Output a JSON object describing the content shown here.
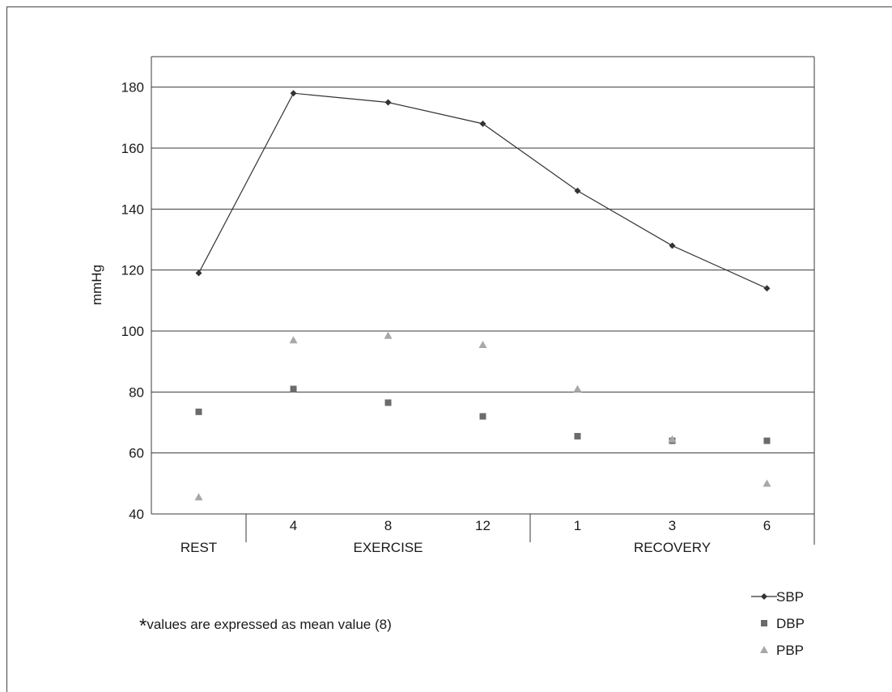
{
  "chart_data": {
    "type": "line",
    "ylabel": "mmHg",
    "ylim": [
      40,
      190
    ],
    "yticks": [
      40,
      60,
      80,
      100,
      120,
      140,
      160,
      180
    ],
    "grid": true,
    "categories": [
      "",
      "4",
      "8",
      "12",
      "1",
      "3",
      "6"
    ],
    "groups": [
      {
        "label": "REST",
        "from": 0,
        "to": 0
      },
      {
        "label": "EXERCISE",
        "from": 1,
        "to": 3
      },
      {
        "label": "RECOVERY",
        "from": 4,
        "to": 6
      }
    ],
    "series": [
      {
        "name": "SBP",
        "marker": "diamond",
        "line": true,
        "color": "#333333",
        "values": [
          119,
          178,
          175,
          168,
          146,
          128,
          114
        ]
      },
      {
        "name": "DBP",
        "marker": "square",
        "line": false,
        "color": "#6b6b6b",
        "values": [
          73.5,
          81,
          76.5,
          72,
          65.5,
          64,
          64
        ]
      },
      {
        "name": "PBP",
        "marker": "triangle",
        "line": false,
        "color": "#a8a8a8",
        "values": [
          45.5,
          97,
          98.5,
          95.5,
          81,
          64.5,
          50
        ]
      }
    ],
    "legend_position": "bottom-right"
  },
  "footnote": {
    "star": "*",
    "text": "values are expressed as mean value (8)"
  }
}
